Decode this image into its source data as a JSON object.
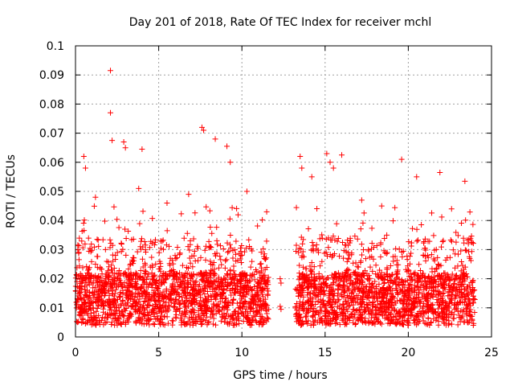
{
  "chart_data": {
    "type": "scatter",
    "title": "Day 201 of 2018, Rate Of TEC Index for receiver mchl",
    "xlabel": "GPS time / hours",
    "ylabel": "ROTI / TECUs",
    "xlim": [
      0,
      25
    ],
    "ylim": [
      0,
      0.1
    ],
    "x_ticks": [
      "0",
      "5",
      "10",
      "15",
      "20",
      "25"
    ],
    "y_ticks": [
      "0",
      "0.01",
      "0.02",
      "0.03",
      "0.04",
      "0.05",
      "0.06",
      "0.07",
      "0.08",
      "0.09",
      "0.1"
    ],
    "grid": true,
    "marker": "plus",
    "series_color": "#ff0000",
    "series": [
      {
        "x": [
          0.1,
          0.3,
          0.5,
          0.7,
          0.9,
          1.2,
          1.5,
          1.8,
          2.1,
          2.4,
          2.7,
          3.0,
          3.3,
          3.6,
          3.9,
          4.2,
          4.5,
          4.8,
          5.1,
          5.4,
          5.7,
          6.0,
          6.3,
          6.6,
          6.9,
          7.2,
          7.5,
          7.8,
          8.1,
          8.4,
          8.7,
          9.0,
          9.3,
          9.6,
          9.9,
          10.2,
          10.5,
          10.8,
          11.1,
          11.4,
          13.4,
          13.7,
          14.0,
          14.3,
          14.6,
          14.9,
          15.2,
          15.5,
          15.8,
          16.1,
          16.4,
          16.7,
          17.0,
          17.3,
          17.6,
          17.9,
          18.2,
          18.5,
          18.8,
          19.1,
          19.4,
          19.7,
          20.0,
          20.3,
          20.6,
          20.9,
          21.2,
          21.5,
          21.8,
          22.1,
          22.4,
          22.7,
          23.0,
          23.3,
          23.6,
          23.9
        ],
        "y": [
          0.012,
          0.021,
          0.009,
          0.016,
          0.011,
          0.025,
          0.013,
          0.019,
          0.01,
          0.028,
          0.014,
          0.022,
          0.008,
          0.017,
          0.031,
          0.012,
          0.024,
          0.015,
          0.01,
          0.02,
          0.027,
          0.013,
          0.018,
          0.011,
          0.033,
          0.016,
          0.022,
          0.009,
          0.026,
          0.014,
          0.019,
          0.012,
          0.023,
          0.015,
          0.01,
          0.021,
          0.017,
          0.013,
          0.025,
          0.011,
          0.014,
          0.02,
          0.012,
          0.018,
          0.029,
          0.016,
          0.034,
          0.013,
          0.022,
          0.019,
          0.027,
          0.011,
          0.024,
          0.015,
          0.03,
          0.014,
          0.021,
          0.017,
          0.012,
          0.026,
          0.018,
          0.013,
          0.023,
          0.01,
          0.019,
          0.028,
          0.014,
          0.016,
          0.025,
          0.012,
          0.021,
          0.017,
          0.011,
          0.022,
          0.015,
          0.013
        ]
      }
    ],
    "outliers": {
      "x": [
        2.1,
        2.1,
        2.2,
        0.5,
        0.6,
        2.9,
        3.0,
        4.0,
        7.6,
        7.7,
        8.4,
        9.1,
        9.3,
        13.5,
        13.6,
        14.2,
        15.1,
        15.3,
        15.5,
        16.0,
        19.6,
        20.5,
        21.9,
        23.4,
        1.2,
        3.8,
        5.5,
        6.8,
        10.3,
        17.2,
        18.4,
        22.6
      ],
      "y": [
        0.0915,
        0.077,
        0.0675,
        0.062,
        0.058,
        0.067,
        0.065,
        0.0645,
        0.072,
        0.071,
        0.068,
        0.0655,
        0.06,
        0.062,
        0.058,
        0.055,
        0.063,
        0.06,
        0.058,
        0.0625,
        0.061,
        0.055,
        0.0565,
        0.0535,
        0.048,
        0.051,
        0.046,
        0.049,
        0.05,
        0.047,
        0.045,
        0.044
      ]
    }
  }
}
